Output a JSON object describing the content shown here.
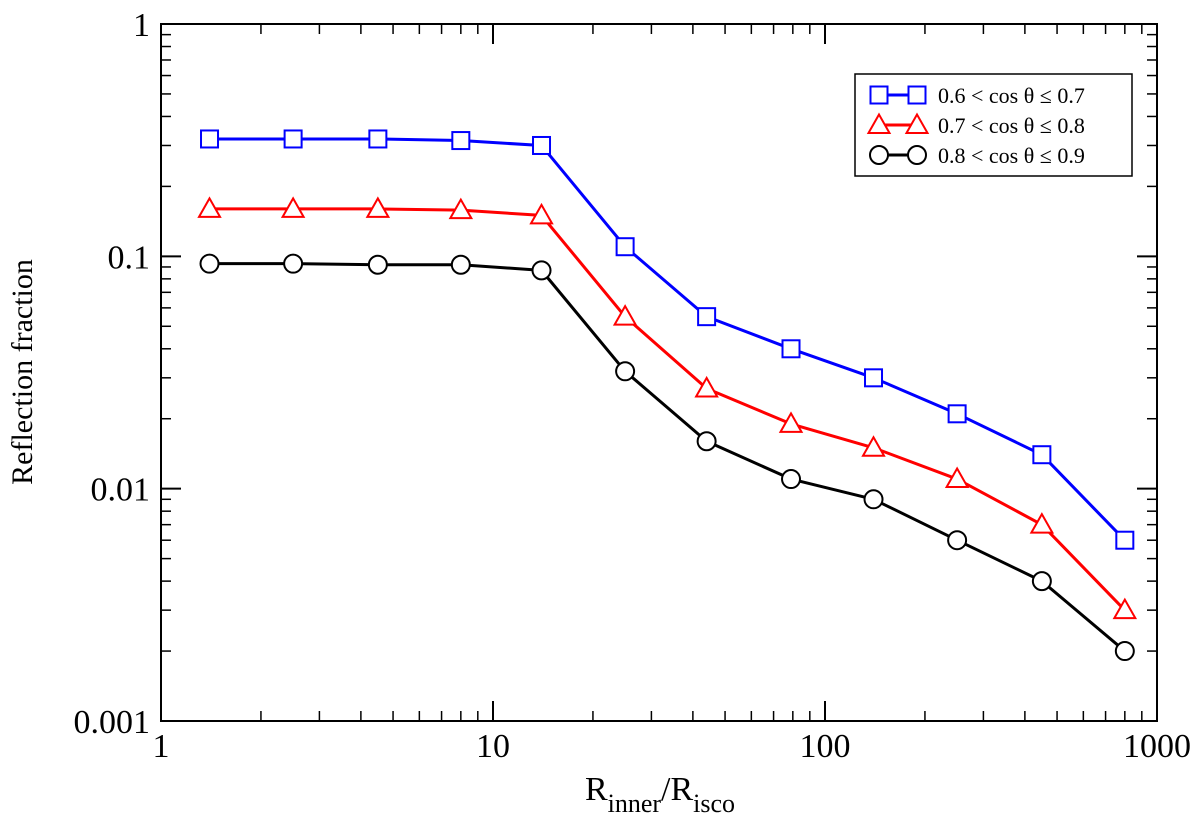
{
  "chart_data": {
    "type": "line",
    "title": "",
    "xlabel": {
      "main": "R",
      "sub1": "inner",
      "slash": "/R",
      "sub2": "isco"
    },
    "ylabel": "Reflection fraction",
    "xscale": "log",
    "yscale": "log",
    "xlim": [
      1,
      1000
    ],
    "ylim": [
      0.001,
      1
    ],
    "xticks": [
      {
        "value": 1,
        "label": "1"
      },
      {
        "value": 10,
        "label": "10"
      },
      {
        "value": 100,
        "label": "100"
      },
      {
        "value": 1000,
        "label": "1000"
      }
    ],
    "yticks": [
      {
        "value": 0.001,
        "label": "0.001"
      },
      {
        "value": 0.01,
        "label": "0.01"
      },
      {
        "value": 0.1,
        "label": "0.1"
      },
      {
        "value": 1,
        "label": "1"
      }
    ],
    "x": [
      1.4,
      2.5,
      4.5,
      8,
      14,
      25,
      44,
      79,
      140,
      250,
      450,
      800
    ],
    "series": [
      {
        "name": "0.6 < cos θ ≤ 0.7",
        "color": "#0000ff",
        "marker": "square",
        "values": [
          0.32,
          0.32,
          0.32,
          0.315,
          0.3,
          0.11,
          0.055,
          0.04,
          0.03,
          0.021,
          0.014,
          0.006
        ]
      },
      {
        "name": "0.7 < cos θ ≤ 0.8",
        "color": "#ff0000",
        "marker": "triangle",
        "values": [
          0.16,
          0.16,
          0.16,
          0.158,
          0.15,
          0.055,
          0.027,
          0.019,
          0.015,
          0.011,
          0.007,
          0.003
        ]
      },
      {
        "name": "0.8 < cos θ ≤ 0.9",
        "color": "#000000",
        "marker": "circle",
        "values": [
          0.093,
          0.093,
          0.092,
          0.092,
          0.087,
          0.032,
          0.016,
          0.011,
          0.009,
          0.006,
          0.004,
          0.002
        ]
      }
    ],
    "legend_position": "top-right",
    "grid": false
  }
}
